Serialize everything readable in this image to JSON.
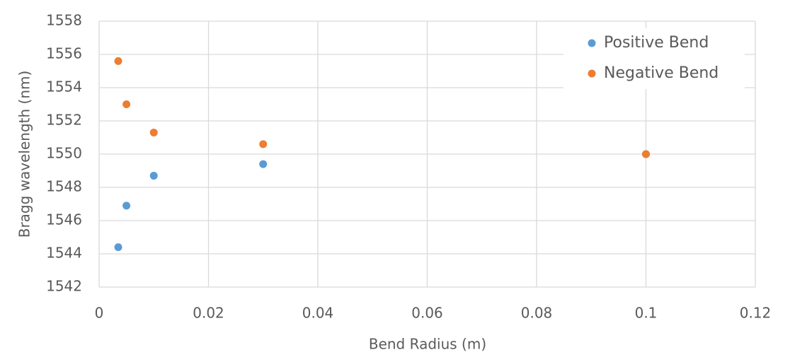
{
  "chart_data": {
    "type": "scatter",
    "x_label": "Bend Radius (m)",
    "y_label": "Bragg wavelength (nm)",
    "xlim": [
      0,
      0.12
    ],
    "xticks": [
      0,
      0.02,
      0.04,
      0.06,
      0.08,
      0.1,
      0.12
    ],
    "ylim": [
      1542,
      1558
    ],
    "yticks": [
      1542,
      1544,
      1546,
      1548,
      1550,
      1552,
      1554,
      1556,
      1558
    ],
    "grid": true,
    "legend": "upper right",
    "series": [
      {
        "name": "Positive Bend",
        "color": "#5b9bd5",
        "x": [
          0.0035,
          0.005,
          0.01,
          0.03,
          0.1
        ],
        "values": [
          1544.4,
          1546.9,
          1548.7,
          1549.4,
          1550
        ]
      },
      {
        "name": "Negative Bend",
        "color": "#ed7d31",
        "x": [
          0.0035,
          0.005,
          0.01,
          0.03,
          0.1
        ],
        "values": [
          1555.6,
          1553,
          1551.3,
          1550.6,
          1550
        ]
      }
    ]
  }
}
